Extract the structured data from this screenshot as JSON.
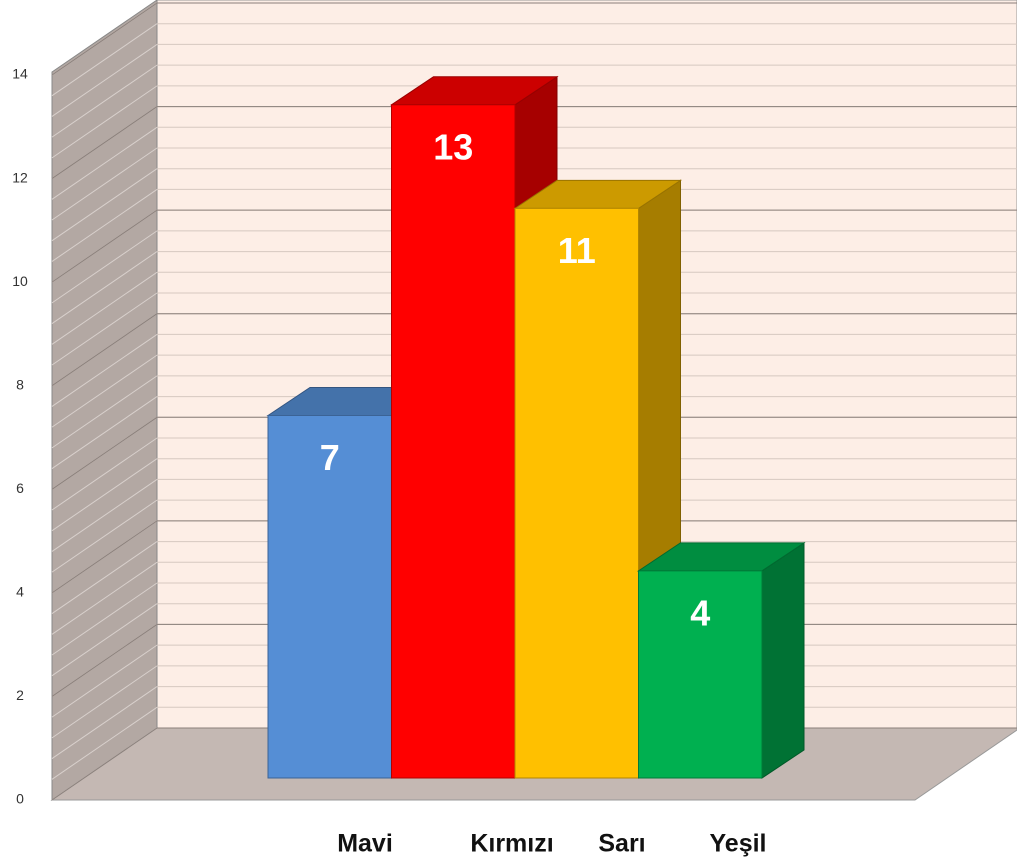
{
  "chart_data": {
    "type": "bar",
    "categories": [
      "Mavi",
      "Kırmızı",
      "Sarı",
      "Yeşil"
    ],
    "values": [
      7,
      13,
      11,
      4
    ],
    "colors": [
      "#558ed5",
      "#ff0000",
      "#ffc000",
      "#00b050"
    ],
    "ylim": [
      0,
      14
    ],
    "yticks": [
      0,
      2,
      4,
      6,
      8,
      10,
      12,
      14
    ],
    "grid": true
  }
}
